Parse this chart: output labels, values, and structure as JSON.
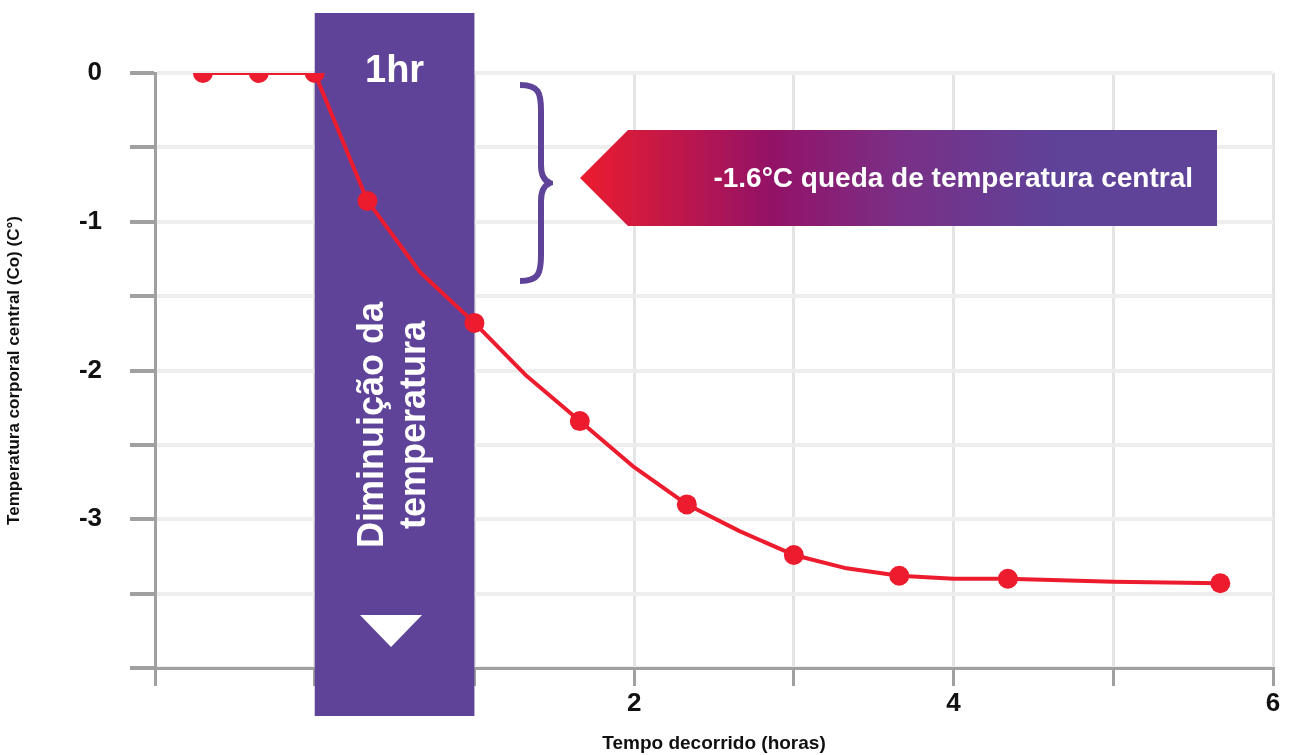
{
  "chart_data": {
    "type": "line",
    "xlabel": "Tempo decorrido (horas)",
    "ylabel": "Temperatura corporal central (Co) (C°)",
    "xlim": [
      -1,
      6
    ],
    "xticks": [
      {
        "value": -1,
        "label": null
      },
      {
        "value": 0,
        "label": null
      },
      {
        "value": 1,
        "label": null
      },
      2,
      {
        "value": 3,
        "label": null
      },
      4,
      {
        "value": 5,
        "label": null
      },
      6
    ],
    "ylim": [
      -4,
      0
    ],
    "yticks": [
      {
        "value": -4,
        "label": null
      },
      {
        "value": -3.5,
        "label": null
      },
      -3,
      {
        "value": -2.5,
        "label": null
      },
      -2,
      {
        "value": -1.5,
        "label": null
      },
      -1,
      {
        "value": -0.5,
        "label": null
      },
      0
    ],
    "grid": true,
    "legend": false,
    "series": [
      {
        "type": "line",
        "marker": "none",
        "color": "#ec1c2e",
        "x": [
          -0.7,
          -0.35,
          0,
          0.33,
          0.66,
          1.0,
          1.32,
          1.66,
          2.0,
          2.33,
          2.66,
          3.0,
          3.33,
          3.66,
          4.0,
          4.34,
          5.0,
          5.67
        ],
        "values": [
          0,
          0,
          0,
          -0.86,
          -1.34,
          -1.68,
          -2.03,
          -2.34,
          -2.65,
          -2.9,
          -3.08,
          -3.24,
          -3.33,
          -3.38,
          -3.4,
          -3.4,
          -3.42,
          -3.43
        ]
      },
      {
        "type": "scatter",
        "marker": "circle",
        "color": "#ec1c2e",
        "x": [
          -0.7,
          -0.35,
          0,
          0.33,
          1.0,
          1.66,
          2.33,
          3.0,
          3.66,
          4.34,
          5.67
        ],
        "values": [
          0,
          0,
          0,
          -0.86,
          -1.68,
          -2.34,
          -2.9,
          -3.24,
          -3.38,
          -3.4,
          -3.43
        ]
      }
    ],
    "bands": [
      {
        "axis": "x",
        "from": 0,
        "to": 1,
        "label": "1hr",
        "color": "#5e4399"
      }
    ],
    "annotations": [
      "Diminuição da temperatura",
      "-1.6°C queda de temperatura central"
    ]
  }
}
